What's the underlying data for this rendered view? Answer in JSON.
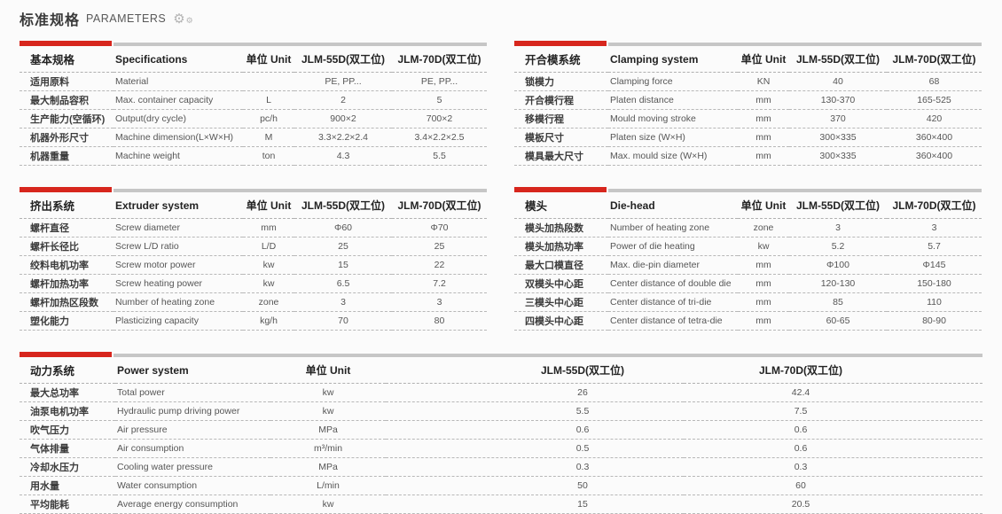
{
  "page": {
    "title_zh": "标准规格",
    "title_en": "PARAMETERS",
    "accent_color": "#d7261d",
    "bar_gray_color": "#c6c6c6",
    "icons": {
      "gear_large": "⚙",
      "gear_small": "⚙"
    }
  },
  "columns": {
    "unit": "单位 Unit",
    "m55": "JLM-55D(双工位)",
    "m70": "JLM-70D(双工位)"
  },
  "tables": [
    {
      "title_zh": "基本规格",
      "title_en": "Specifications",
      "rows": [
        [
          "适用原料",
          "Material",
          "",
          "PE, PP...",
          "PE, PP..."
        ],
        [
          "最大制品容积",
          "Max. container capacity",
          "L",
          "2",
          "5"
        ],
        [
          "生产能力(空循环)",
          "Output(dry cycle)",
          "pc/h",
          "900×2",
          "700×2"
        ],
        [
          "机器外形尺寸",
          "Machine dimension(L×W×H)",
          "M",
          "3.3×2.2×2.4",
          "3.4×2.2×2.5"
        ],
        [
          "机器重量",
          "Machine weight",
          "ton",
          "4.3",
          "5.5"
        ]
      ]
    },
    {
      "title_zh": "开合模系统",
      "title_en": "Clamping system",
      "rows": [
        [
          "锁模力",
          "Clamping force",
          "KN",
          "40",
          "68"
        ],
        [
          "开合模行程",
          "Platen distance",
          "mm",
          "130-370",
          "165-525"
        ],
        [
          "移模行程",
          "Mould moving stroke",
          "mm",
          "370",
          "420"
        ],
        [
          "模板尺寸",
          "Platen size (W×H)",
          "mm",
          "300×335",
          "360×400"
        ],
        [
          "模具最大尺寸",
          "Max. mould size (W×H)",
          "mm",
          "300×335",
          "360×400"
        ]
      ]
    },
    {
      "title_zh": "挤出系统",
      "title_en": "Extruder system",
      "rows": [
        [
          "螺杆直径",
          "Screw diameter",
          "mm",
          "Φ60",
          "Φ70"
        ],
        [
          "螺杆长径比",
          "Screw L/D ratio",
          "L/D",
          "25",
          "25"
        ],
        [
          "绞料电机功率",
          "Screw motor power",
          "kw",
          "15",
          "22"
        ],
        [
          "螺杆加热功率",
          "Screw heating power",
          "kw",
          "6.5",
          "7.2"
        ],
        [
          "螺杆加热区段数",
          "Number of heating zone",
          "zone",
          "3",
          "3"
        ],
        [
          "塑化能力",
          "Plasticizing capacity",
          "kg/h",
          "70",
          "80"
        ]
      ]
    },
    {
      "title_zh": "模头",
      "title_en": "Die-head",
      "rows": [
        [
          "模头加热段数",
          "Number of heating zone",
          "zone",
          "3",
          "3"
        ],
        [
          "模头加热功率",
          "Power of die heating",
          "kw",
          "5.2",
          "5.7"
        ],
        [
          "最大口模直径",
          "Max. die-pin diameter",
          "mm",
          "Φ100",
          "Φ145"
        ],
        [
          "双模头中心距",
          "Center distance of double die",
          "mm",
          "120-130",
          "150-180"
        ],
        [
          "三模头中心距",
          "Center distance of tri-die",
          "mm",
          "85",
          "110"
        ],
        [
          "四模头中心距",
          "Center distance of tetra-die",
          "mm",
          "60-65",
          "80-90"
        ]
      ]
    },
    {
      "title_zh": "动力系统",
      "title_en": "Power system",
      "rows": [
        [
          "最大总功率",
          "Total power",
          "kw",
          "26",
          "42.4"
        ],
        [
          "油泵电机功率",
          "Hydraulic pump driving power",
          "kw",
          "5.5",
          "7.5"
        ],
        [
          "吹气压力",
          "Air pressure",
          "MPa",
          "0.6",
          "0.6"
        ],
        [
          "气体排量",
          "Air consumption",
          "m³/min",
          "0.5",
          "0.6"
        ],
        [
          "冷却水压力",
          "Cooling water pressure",
          "MPa",
          "0.3",
          "0.3"
        ],
        [
          "用水量",
          "Water consumption",
          "L/min",
          "50",
          "60"
        ],
        [
          "平均能耗",
          "Average energy consumption",
          "kw",
          "15",
          "20.5"
        ]
      ]
    }
  ]
}
